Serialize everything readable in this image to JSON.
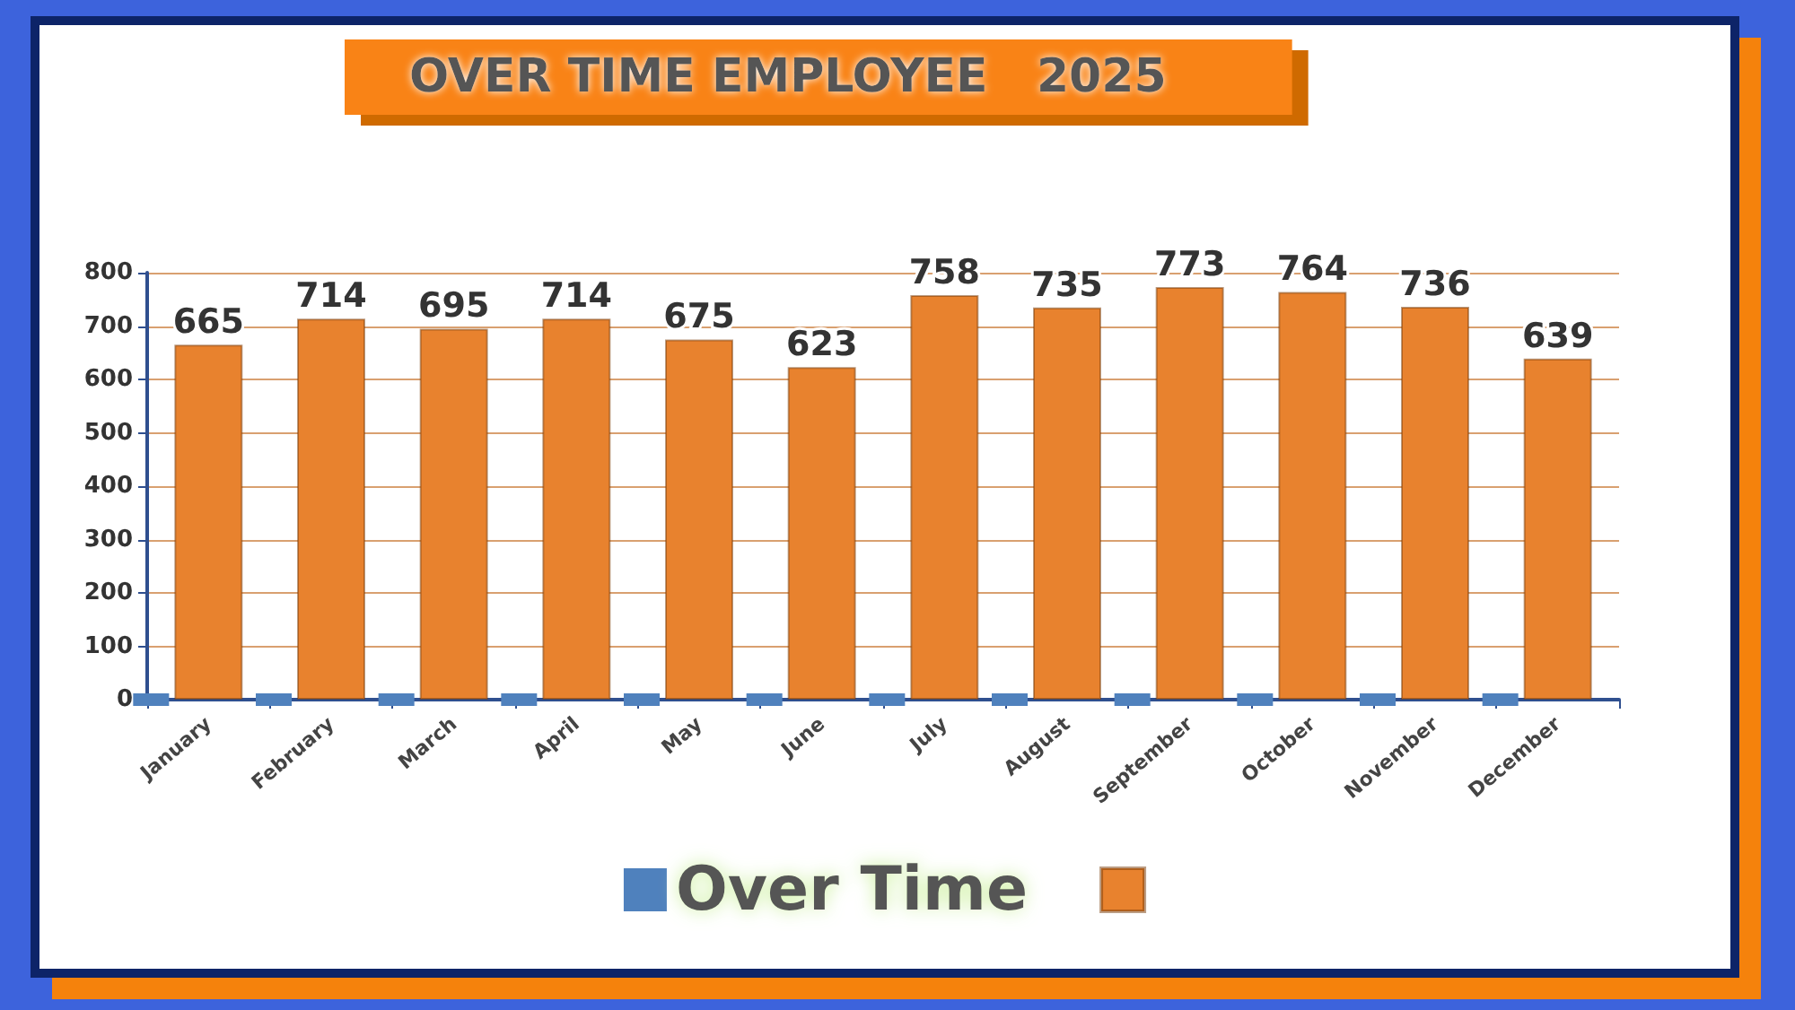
{
  "chart_data": {
    "type": "bar",
    "title": "OVER TIME EMPLOYEE   2025",
    "categories": [
      "January",
      "February",
      "March",
      "April",
      "May",
      "June",
      "July",
      "August",
      "September",
      "October",
      "November",
      "December"
    ],
    "series": [
      {
        "name": "Over Time",
        "type": "scatter",
        "marker": "square",
        "color": "#4f81bd",
        "x": [
          "January",
          "February",
          "March",
          "April",
          "May",
          "June",
          "July",
          "August",
          "September",
          "October",
          "November",
          "December"
        ],
        "values": [
          0,
          0,
          0,
          0,
          0,
          0,
          0,
          0,
          0,
          0,
          0,
          0
        ]
      },
      {
        "color": "#e8822e",
        "values": [
          665,
          714,
          695,
          714,
          675,
          623,
          758,
          735,
          773,
          764,
          736,
          639
        ],
        "value_labels": [
          "665",
          "714",
          "695",
          "714",
          "675",
          "623",
          "758",
          "735",
          "773",
          "764",
          "736",
          "639"
        ]
      }
    ],
    "ylim": [
      0,
      800
    ],
    "yticks": [
      0,
      100,
      200,
      300,
      400,
      500,
      600,
      700,
      800
    ],
    "grid": "y",
    "legend": "bottom"
  }
}
